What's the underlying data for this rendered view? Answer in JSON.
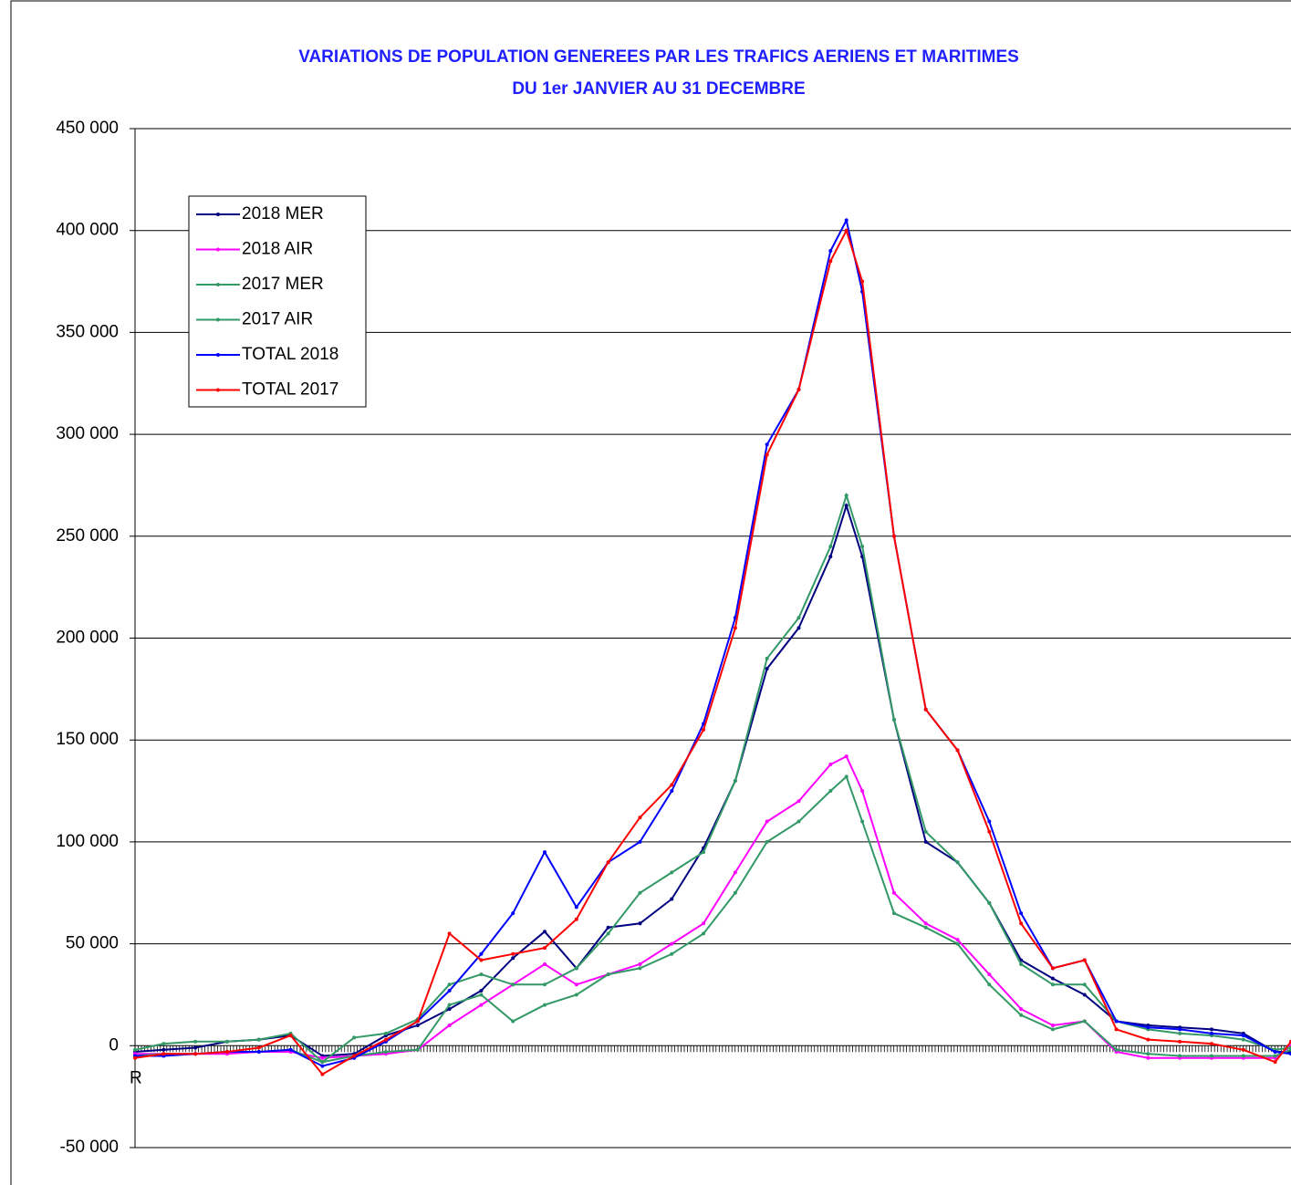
{
  "chart_data": {
    "type": "line",
    "title": [
      "VARIATIONS DE POPULATION GENEREES PAR LES TRAFICS AERIENS ET MARITIMES",
      "DU 1er JANVIER AU 31 DECEMBRE"
    ],
    "x": [
      1,
      10,
      20,
      30,
      40,
      50,
      60,
      70,
      80,
      90,
      100,
      110,
      120,
      130,
      140,
      150,
      160,
      170,
      180,
      190,
      200,
      210,
      220,
      225,
      230,
      240,
      250,
      260,
      270,
      280,
      290,
      300,
      310,
      320,
      330,
      340,
      350,
      360,
      365
    ],
    "xlim": [
      1,
      365
    ],
    "xticks": [
      {
        "value": 1,
        "label": "R"
      }
    ],
    "ylim": [
      -50000,
      450000
    ],
    "yticks": [
      {
        "value": -50000,
        "label": "-50 000"
      },
      0,
      {
        "value": 50000,
        "label": "50 000"
      },
      {
        "value": 100000,
        "label": "100 000"
      },
      {
        "value": 150000,
        "label": "150 000"
      },
      {
        "value": 200000,
        "label": "200 000"
      },
      {
        "value": 250000,
        "label": "250 000"
      },
      {
        "value": 300000,
        "label": "300 000"
      },
      {
        "value": 350000,
        "label": "350 000"
      },
      {
        "value": 400000,
        "label": "400 000"
      },
      {
        "value": 450000,
        "label": "450 000"
      }
    ],
    "grid": true,
    "legend": "upper left",
    "series": [
      {
        "name": "2018 MER",
        "color": "#000080",
        "values": [
          -3000,
          -2000,
          -1000,
          2000,
          3000,
          5000,
          -5000,
          -4000,
          5000,
          10000,
          18000,
          27000,
          43000,
          56000,
          38000,
          58000,
          60000,
          72000,
          97000,
          130000,
          185000,
          205000,
          240000,
          265000,
          240000,
          160000,
          100000,
          90000,
          70000,
          42000,
          33000,
          25000,
          12000,
          10000,
          9000,
          8000,
          6000,
          -3000,
          -3000
        ]
      },
      {
        "name": "2018 AIR",
        "color": "#ff00ff",
        "values": [
          -4000,
          -4000,
          -4000,
          -4000,
          -3000,
          -3000,
          -6000,
          -5000,
          -4000,
          -2000,
          10000,
          20000,
          30000,
          40000,
          30000,
          35000,
          40000,
          50000,
          60000,
          85000,
          110000,
          120000,
          138000,
          142000,
          125000,
          75000,
          60000,
          52000,
          35000,
          18000,
          10000,
          12000,
          -3000,
          -6000,
          -6000,
          -6000,
          -6000,
          -6000,
          0
        ]
      },
      {
        "name": "2017 MER",
        "color": "#339966",
        "values": [
          -2000,
          1000,
          2000,
          2000,
          3000,
          6000,
          -8000,
          4000,
          6000,
          13000,
          30000,
          35000,
          30000,
          30000,
          38000,
          55000,
          75000,
          85000,
          95000,
          130000,
          190000,
          210000,
          245000,
          270000,
          245000,
          160000,
          105000,
          90000,
          70000,
          40000,
          30000,
          30000,
          12000,
          8000,
          6000,
          5000,
          3000,
          -2000,
          -1000
        ]
      },
      {
        "name": "2017 AIR",
        "color": "#339966",
        "values": [
          -5000,
          -4000,
          -4000,
          -3000,
          -3000,
          -2000,
          -8000,
          -5000,
          -3000,
          -2000,
          20000,
          25000,
          12000,
          20000,
          25000,
          35000,
          38000,
          45000,
          55000,
          75000,
          100000,
          110000,
          125000,
          132000,
          110000,
          65000,
          58000,
          50000,
          30000,
          15000,
          8000,
          12000,
          -2000,
          -4000,
          -5000,
          -5000,
          -5000,
          -5000,
          -2000
        ]
      },
      {
        "name": "TOTAL 2018",
        "color": "#0000ff",
        "values": [
          -5000,
          -5000,
          -4000,
          -3000,
          -3000,
          -2000,
          -10000,
          -6000,
          2000,
          12000,
          27000,
          45000,
          65000,
          95000,
          68000,
          90000,
          100000,
          125000,
          158000,
          210000,
          295000,
          322000,
          390000,
          405000,
          370000,
          250000,
          165000,
          145000,
          110000,
          65000,
          38000,
          42000,
          12000,
          9000,
          8000,
          6000,
          5000,
          -3000,
          -4000
        ]
      },
      {
        "name": "TOTAL 2017",
        "color": "#ff0000",
        "values": [
          -6000,
          -4000,
          -4000,
          -3000,
          -1000,
          5000,
          -14000,
          -5000,
          3000,
          12000,
          55000,
          42000,
          45000,
          48000,
          62000,
          90000,
          112000,
          128000,
          155000,
          205000,
          290000,
          322000,
          385000,
          400000,
          375000,
          250000,
          165000,
          145000,
          105000,
          60000,
          38000,
          42000,
          8000,
          3000,
          2000,
          1000,
          -2000,
          -8000,
          2000
        ]
      }
    ]
  }
}
